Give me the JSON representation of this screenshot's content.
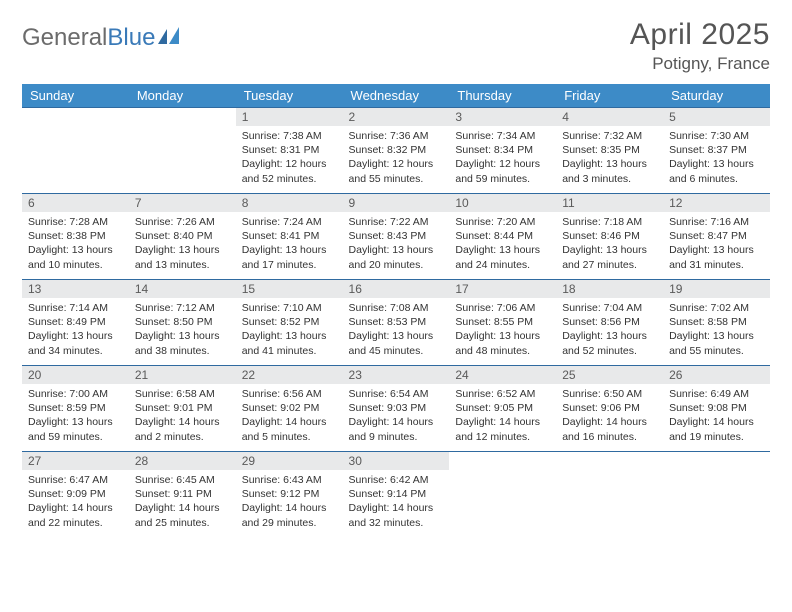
{
  "logo": {
    "part1": "General",
    "part2": "Blue"
  },
  "title": "April 2025",
  "location": "Potigny, France",
  "colors": {
    "header_bg": "#3d8bc7",
    "header_text": "#ffffff",
    "daynum_bg": "#e8e9ea",
    "daynum_text": "#5a5a5a",
    "row_border": "#2f6aa0",
    "body_text": "#333333",
    "logo_gray": "#6b6b6b",
    "logo_blue": "#3a7ab8"
  },
  "weekdays": [
    "Sunday",
    "Monday",
    "Tuesday",
    "Wednesday",
    "Thursday",
    "Friday",
    "Saturday"
  ],
  "weeks": [
    [
      null,
      null,
      {
        "d": "1",
        "sr": "Sunrise: 7:38 AM",
        "ss": "Sunset: 8:31 PM",
        "dl": "Daylight: 12 hours and 52 minutes."
      },
      {
        "d": "2",
        "sr": "Sunrise: 7:36 AM",
        "ss": "Sunset: 8:32 PM",
        "dl": "Daylight: 12 hours and 55 minutes."
      },
      {
        "d": "3",
        "sr": "Sunrise: 7:34 AM",
        "ss": "Sunset: 8:34 PM",
        "dl": "Daylight: 12 hours and 59 minutes."
      },
      {
        "d": "4",
        "sr": "Sunrise: 7:32 AM",
        "ss": "Sunset: 8:35 PM",
        "dl": "Daylight: 13 hours and 3 minutes."
      },
      {
        "d": "5",
        "sr": "Sunrise: 7:30 AM",
        "ss": "Sunset: 8:37 PM",
        "dl": "Daylight: 13 hours and 6 minutes."
      }
    ],
    [
      {
        "d": "6",
        "sr": "Sunrise: 7:28 AM",
        "ss": "Sunset: 8:38 PM",
        "dl": "Daylight: 13 hours and 10 minutes."
      },
      {
        "d": "7",
        "sr": "Sunrise: 7:26 AM",
        "ss": "Sunset: 8:40 PM",
        "dl": "Daylight: 13 hours and 13 minutes."
      },
      {
        "d": "8",
        "sr": "Sunrise: 7:24 AM",
        "ss": "Sunset: 8:41 PM",
        "dl": "Daylight: 13 hours and 17 minutes."
      },
      {
        "d": "9",
        "sr": "Sunrise: 7:22 AM",
        "ss": "Sunset: 8:43 PM",
        "dl": "Daylight: 13 hours and 20 minutes."
      },
      {
        "d": "10",
        "sr": "Sunrise: 7:20 AM",
        "ss": "Sunset: 8:44 PM",
        "dl": "Daylight: 13 hours and 24 minutes."
      },
      {
        "d": "11",
        "sr": "Sunrise: 7:18 AM",
        "ss": "Sunset: 8:46 PM",
        "dl": "Daylight: 13 hours and 27 minutes."
      },
      {
        "d": "12",
        "sr": "Sunrise: 7:16 AM",
        "ss": "Sunset: 8:47 PM",
        "dl": "Daylight: 13 hours and 31 minutes."
      }
    ],
    [
      {
        "d": "13",
        "sr": "Sunrise: 7:14 AM",
        "ss": "Sunset: 8:49 PM",
        "dl": "Daylight: 13 hours and 34 minutes."
      },
      {
        "d": "14",
        "sr": "Sunrise: 7:12 AM",
        "ss": "Sunset: 8:50 PM",
        "dl": "Daylight: 13 hours and 38 minutes."
      },
      {
        "d": "15",
        "sr": "Sunrise: 7:10 AM",
        "ss": "Sunset: 8:52 PM",
        "dl": "Daylight: 13 hours and 41 minutes."
      },
      {
        "d": "16",
        "sr": "Sunrise: 7:08 AM",
        "ss": "Sunset: 8:53 PM",
        "dl": "Daylight: 13 hours and 45 minutes."
      },
      {
        "d": "17",
        "sr": "Sunrise: 7:06 AM",
        "ss": "Sunset: 8:55 PM",
        "dl": "Daylight: 13 hours and 48 minutes."
      },
      {
        "d": "18",
        "sr": "Sunrise: 7:04 AM",
        "ss": "Sunset: 8:56 PM",
        "dl": "Daylight: 13 hours and 52 minutes."
      },
      {
        "d": "19",
        "sr": "Sunrise: 7:02 AM",
        "ss": "Sunset: 8:58 PM",
        "dl": "Daylight: 13 hours and 55 minutes."
      }
    ],
    [
      {
        "d": "20",
        "sr": "Sunrise: 7:00 AM",
        "ss": "Sunset: 8:59 PM",
        "dl": "Daylight: 13 hours and 59 minutes."
      },
      {
        "d": "21",
        "sr": "Sunrise: 6:58 AM",
        "ss": "Sunset: 9:01 PM",
        "dl": "Daylight: 14 hours and 2 minutes."
      },
      {
        "d": "22",
        "sr": "Sunrise: 6:56 AM",
        "ss": "Sunset: 9:02 PM",
        "dl": "Daylight: 14 hours and 5 minutes."
      },
      {
        "d": "23",
        "sr": "Sunrise: 6:54 AM",
        "ss": "Sunset: 9:03 PM",
        "dl": "Daylight: 14 hours and 9 minutes."
      },
      {
        "d": "24",
        "sr": "Sunrise: 6:52 AM",
        "ss": "Sunset: 9:05 PM",
        "dl": "Daylight: 14 hours and 12 minutes."
      },
      {
        "d": "25",
        "sr": "Sunrise: 6:50 AM",
        "ss": "Sunset: 9:06 PM",
        "dl": "Daylight: 14 hours and 16 minutes."
      },
      {
        "d": "26",
        "sr": "Sunrise: 6:49 AM",
        "ss": "Sunset: 9:08 PM",
        "dl": "Daylight: 14 hours and 19 minutes."
      }
    ],
    [
      {
        "d": "27",
        "sr": "Sunrise: 6:47 AM",
        "ss": "Sunset: 9:09 PM",
        "dl": "Daylight: 14 hours and 22 minutes."
      },
      {
        "d": "28",
        "sr": "Sunrise: 6:45 AM",
        "ss": "Sunset: 9:11 PM",
        "dl": "Daylight: 14 hours and 25 minutes."
      },
      {
        "d": "29",
        "sr": "Sunrise: 6:43 AM",
        "ss": "Sunset: 9:12 PM",
        "dl": "Daylight: 14 hours and 29 minutes."
      },
      {
        "d": "30",
        "sr": "Sunrise: 6:42 AM",
        "ss": "Sunset: 9:14 PM",
        "dl": "Daylight: 14 hours and 32 minutes."
      },
      null,
      null,
      null
    ]
  ]
}
